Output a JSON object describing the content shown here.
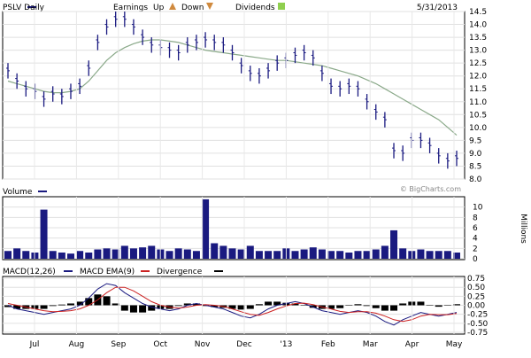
{
  "legend": {
    "price": {
      "label": "PSLV Daily"
    },
    "earnings": {
      "label": "Earnings"
    },
    "up": {
      "label": "Up"
    },
    "down": {
      "label": "Down"
    },
    "dividends": {
      "label": "Dividends"
    },
    "date": "5/31/2013"
  },
  "volume_legend": {
    "label": "Volume"
  },
  "macd_legend": {
    "macd": "MACD(12,26)",
    "ema": "MACD EMA(9)",
    "divergence": "Divergence"
  },
  "watermark": "© BigCharts.com",
  "units_label": "Millions",
  "colors": {
    "price_bars": "#1a1a80",
    "moving_average": "#8aa989",
    "volume": "#1a1a80",
    "macd": "#1a1a80",
    "macd_ema": "#cc2222",
    "divergence": "#000000",
    "legend_swatch": "#1a1a80",
    "earnings_up_icon": "#d08a3e",
    "dividends_icon": "#8fcf4f"
  },
  "icons": {
    "up": "triangle-up-icon",
    "down": "triangle-down-icon",
    "dividends": "dividend-icon"
  },
  "chart_data": [
    {
      "type": "ohlc",
      "series_name": "PSLV Daily",
      "x": [
        "2012-06-15",
        "2012-06-22",
        "2012-06-29",
        "2012-07-06",
        "2012-07-13",
        "2012-07-20",
        "2012-07-27",
        "2012-08-03",
        "2012-08-10",
        "2012-08-17",
        "2012-08-24",
        "2012-08-31",
        "2012-09-07",
        "2012-09-14",
        "2012-09-21",
        "2012-09-28",
        "2012-10-05",
        "2012-10-12",
        "2012-10-19",
        "2012-10-26",
        "2012-11-02",
        "2012-11-09",
        "2012-11-16",
        "2012-11-23",
        "2012-11-30",
        "2012-12-07",
        "2012-12-14",
        "2012-12-21",
        "2012-12-28",
        "2013-01-04",
        "2013-01-11",
        "2013-01-18",
        "2013-01-25",
        "2013-02-01",
        "2013-02-08",
        "2013-02-15",
        "2013-02-22",
        "2013-03-01",
        "2013-03-08",
        "2013-03-15",
        "2013-03-22",
        "2013-03-29",
        "2013-04-05",
        "2013-04-12",
        "2013-04-19",
        "2013-04-26",
        "2013-05-03",
        "2013-05-10",
        "2013-05-17",
        "2013-05-24",
        "2013-05-31"
      ],
      "values": [
        12.2,
        11.8,
        11.5,
        11.4,
        11.1,
        11.3,
        11.2,
        11.4,
        11.6,
        12.3,
        13.3,
        13.9,
        14.2,
        14.2,
        13.9,
        13.5,
        13.2,
        13.1,
        13.0,
        12.9,
        13.2,
        13.3,
        13.4,
        13.3,
        13.2,
        12.9,
        12.4,
        12.1,
        12.0,
        12.2,
        12.5,
        12.6,
        12.8,
        12.9,
        12.7,
        12.1,
        11.6,
        11.5,
        11.6,
        11.5,
        11.0,
        10.6,
        10.3,
        9.1,
        9.0,
        9.5,
        9.5,
        9.3,
        8.9,
        8.7,
        8.8
      ],
      "moving_average": [
        11.8,
        11.7,
        11.6,
        11.5,
        11.4,
        11.35,
        11.35,
        11.4,
        11.5,
        11.8,
        12.2,
        12.6,
        12.9,
        13.1,
        13.25,
        13.35,
        13.4,
        13.4,
        13.35,
        13.3,
        13.2,
        13.1,
        13.0,
        12.95,
        12.9,
        12.85,
        12.8,
        12.75,
        12.7,
        12.65,
        12.6,
        12.6,
        12.55,
        12.5,
        12.45,
        12.4,
        12.3,
        12.2,
        12.1,
        12.0,
        11.85,
        11.7,
        11.5,
        11.3,
        11.1,
        10.9,
        10.7,
        10.5,
        10.3,
        10.0,
        9.7
      ],
      "ylim": [
        8.0,
        14.5
      ],
      "yticks": [
        8.0,
        8.5,
        9.0,
        9.5,
        10.0,
        10.5,
        11.0,
        11.5,
        12.0,
        12.5,
        13.0,
        13.5,
        14.0,
        14.5
      ],
      "xticks": [
        "Jul",
        "Aug",
        "Sep",
        "Oct",
        "Nov",
        "Dec",
        "'13",
        "Feb",
        "Mar",
        "Apr",
        "May"
      ],
      "grid": true
    },
    {
      "type": "bar",
      "series_name": "Volume",
      "unit": "Millions",
      "values": [
        1.5,
        2.0,
        1.5,
        1.2,
        9.5,
        1.5,
        1.2,
        1.0,
        1.5,
        1.2,
        1.8,
        2.0,
        1.8,
        2.5,
        2.0,
        2.2,
        2.5,
        1.8,
        1.5,
        2.0,
        1.8,
        1.5,
        11.5,
        3.0,
        2.5,
        2.0,
        1.8,
        2.5,
        1.5,
        1.5,
        1.5,
        2.0,
        1.5,
        1.8,
        2.2,
        1.8,
        1.5,
        1.5,
        1.2,
        1.5,
        1.5,
        1.8,
        2.5,
        5.5,
        2.0,
        1.5,
        1.8,
        1.5,
        1.5,
        1.5,
        1.2
      ],
      "ylim": [
        0,
        12
      ],
      "yticks": [
        0,
        2,
        4,
        6,
        8,
        10
      ],
      "grid": true
    },
    {
      "type": "line",
      "series": [
        {
          "name": "MACD(12,26)",
          "values": [
            0.0,
            -0.1,
            -0.15,
            -0.2,
            -0.25,
            -0.2,
            -0.15,
            -0.1,
            0.0,
            0.2,
            0.45,
            0.6,
            0.55,
            0.35,
            0.2,
            0.05,
            -0.05,
            -0.1,
            -0.15,
            -0.1,
            0.0,
            0.05,
            0.0,
            -0.05,
            -0.1,
            -0.2,
            -0.3,
            -0.35,
            -0.25,
            -0.1,
            0.0,
            0.05,
            0.1,
            0.05,
            -0.05,
            -0.15,
            -0.2,
            -0.25,
            -0.2,
            -0.15,
            -0.2,
            -0.3,
            -0.45,
            -0.55,
            -0.4,
            -0.3,
            -0.2,
            -0.25,
            -0.3,
            -0.25,
            -0.2
          ]
        },
        {
          "name": "MACD EMA(9)",
          "values": [
            0.05,
            0.0,
            -0.05,
            -0.1,
            -0.15,
            -0.18,
            -0.17,
            -0.15,
            -0.1,
            0.0,
            0.15,
            0.35,
            0.5,
            0.5,
            0.4,
            0.25,
            0.1,
            0.0,
            -0.05,
            -0.08,
            -0.05,
            0.0,
            0.02,
            0.0,
            -0.03,
            -0.1,
            -0.18,
            -0.25,
            -0.28,
            -0.2,
            -0.1,
            -0.02,
            0.05,
            0.06,
            0.02,
            -0.05,
            -0.1,
            -0.17,
            -0.2,
            -0.18,
            -0.18,
            -0.22,
            -0.3,
            -0.4,
            -0.45,
            -0.4,
            -0.3,
            -0.25,
            -0.26,
            -0.26,
            -0.23
          ]
        }
      ],
      "ylim": [
        -0.8,
        0.8
      ],
      "yticks": [
        0.75,
        0.5,
        0.25,
        0.0,
        -0.25,
        -0.5,
        -0.75
      ],
      "ytick_labels": [
        "0.75",
        "0.50",
        "0.25",
        "0.00",
        "-0.25",
        "-0.50",
        "-0.75"
      ],
      "grid": true
    }
  ]
}
